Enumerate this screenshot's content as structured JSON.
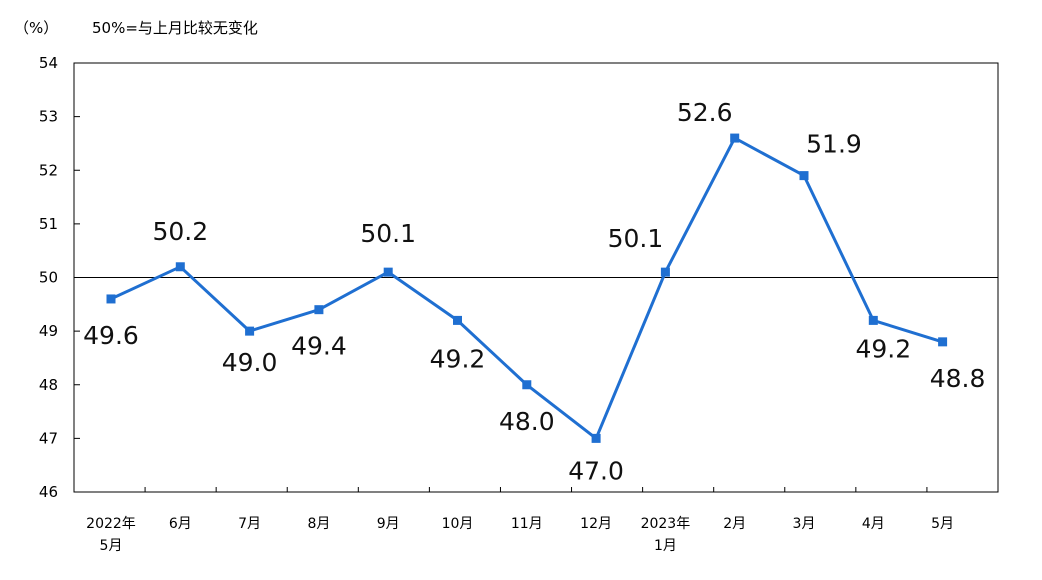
{
  "chart_data": {
    "type": "line",
    "header_unit": "（%）",
    "header_note": "50%=与上月比较无变化",
    "categories": [
      [
        "2022年",
        "5月"
      ],
      [
        "6月"
      ],
      [
        "7月"
      ],
      [
        "8月"
      ],
      [
        "9月"
      ],
      [
        "10月"
      ],
      [
        "11月"
      ],
      [
        "12月"
      ],
      [
        "2023年",
        "1月"
      ],
      [
        "2月"
      ],
      [
        "3月"
      ],
      [
        "4月"
      ],
      [
        "5月"
      ]
    ],
    "values": [
      49.6,
      50.2,
      49.0,
      49.4,
      50.1,
      49.2,
      48.0,
      47.0,
      50.1,
      52.6,
      51.9,
      49.2,
      48.8
    ],
    "value_labels": [
      "49.6",
      "50.2",
      "49.0",
      "49.4",
      "50.1",
      "49.2",
      "48.0",
      "47.0",
      "50.1",
      "52.6",
      "51.9",
      "49.2",
      "48.8"
    ],
    "ylim": [
      46,
      54
    ],
    "yticks": [
      46,
      47,
      48,
      49,
      50,
      51,
      52,
      53,
      54
    ],
    "reference_line": 50,
    "line_color": "#1f6fd1",
    "grid": false
  }
}
